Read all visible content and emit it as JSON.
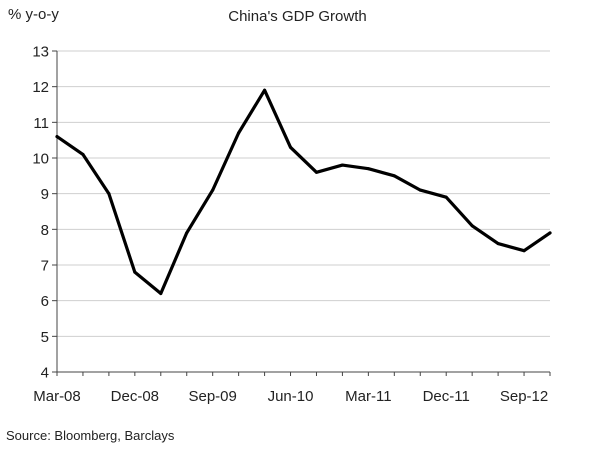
{
  "chart_data": {
    "type": "line",
    "title": "China's GDP Growth",
    "ylabel": "% y-o-y",
    "xlabel": "",
    "source": "Source: Bloomberg, Barclays",
    "ylim": [
      4,
      13
    ],
    "yticks": [
      4,
      5,
      6,
      7,
      8,
      9,
      10,
      11,
      12,
      13
    ],
    "x_tick_labels": [
      "Mar-08",
      "Dec-08",
      "Sep-09",
      "Jun-10",
      "Mar-11",
      "Dec-11",
      "Sep-12"
    ],
    "x": [
      "Mar-08",
      "Jun-08",
      "Sep-08",
      "Dec-08",
      "Mar-09",
      "Jun-09",
      "Sep-09",
      "Dec-09",
      "Mar-10",
      "Jun-10",
      "Sep-10",
      "Dec-10",
      "Mar-11",
      "Jun-11",
      "Sep-11",
      "Dec-11",
      "Mar-12",
      "Jun-12",
      "Sep-12",
      "Dec-12"
    ],
    "series": [
      {
        "values": [
          10.6,
          10.1,
          9.0,
          6.8,
          6.2,
          7.9,
          9.1,
          10.7,
          11.9,
          10.3,
          9.6,
          9.8,
          9.7,
          9.5,
          9.1,
          8.9,
          8.1,
          7.6,
          7.4,
          7.9
        ],
        "color": "#000000"
      }
    ],
    "grid": "horizontal",
    "legend": "none"
  }
}
